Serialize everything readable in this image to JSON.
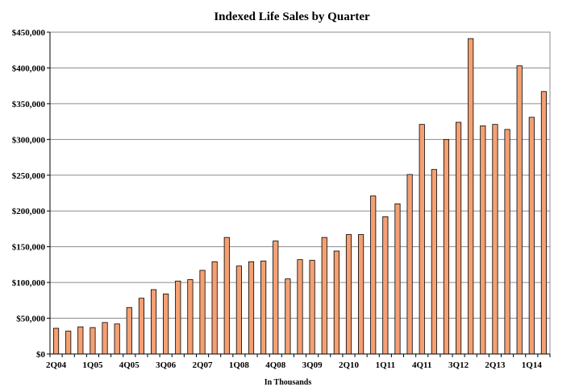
{
  "chart_data": {
    "type": "bar",
    "title": "Indexed Life Sales by Quarter",
    "xlabel": "In Thousands",
    "ylabel": "",
    "ylim": [
      0,
      450000
    ],
    "yticks": [
      0,
      50000,
      100000,
      150000,
      200000,
      250000,
      300000,
      350000,
      400000,
      450000
    ],
    "ytick_labels": [
      "$0",
      "$50,000",
      "$100,000",
      "$150,000",
      "$200,000",
      "$250,000",
      "$300,000",
      "$350,000",
      "$400,000",
      "$450,000"
    ],
    "grid": true,
    "bar_color": "#f4a073",
    "categories": [
      "2Q04",
      "3Q04",
      "4Q04",
      "1Q05",
      "2Q05",
      "3Q05",
      "4Q05",
      "1Q06",
      "2Q06",
      "3Q06",
      "4Q06",
      "1Q07",
      "2Q07",
      "3Q07",
      "4Q07",
      "1Q08",
      "2Q08",
      "3Q08",
      "4Q08",
      "1Q09",
      "2Q09",
      "3Q09",
      "4Q09",
      "1Q10",
      "2Q10",
      "3Q10",
      "4Q10",
      "1Q11",
      "2Q11",
      "3Q11",
      "4Q11",
      "1Q12",
      "2Q12",
      "3Q12",
      "4Q12",
      "1Q13",
      "2Q13",
      "3Q13",
      "4Q13",
      "1Q14",
      "2Q14"
    ],
    "x_tick_labels": [
      "2Q04",
      "1Q05",
      "4Q05",
      "3Q06",
      "2Q07",
      "1Q08",
      "4Q08",
      "3Q09",
      "2Q10",
      "1Q11",
      "4Q11",
      "3Q12",
      "2Q13",
      "1Q14"
    ],
    "values": [
      36000,
      32000,
      38000,
      37000,
      44000,
      42000,
      65000,
      78000,
      90000,
      84000,
      102000,
      104000,
      117000,
      129000,
      163000,
      123000,
      129000,
      130000,
      158000,
      105000,
      132000,
      131000,
      163000,
      144000,
      167000,
      167000,
      221000,
      192000,
      210000,
      251000,
      321000,
      258000,
      300000,
      324000,
      441000,
      319000,
      321000,
      314000,
      403000,
      331000,
      367000
    ]
  }
}
